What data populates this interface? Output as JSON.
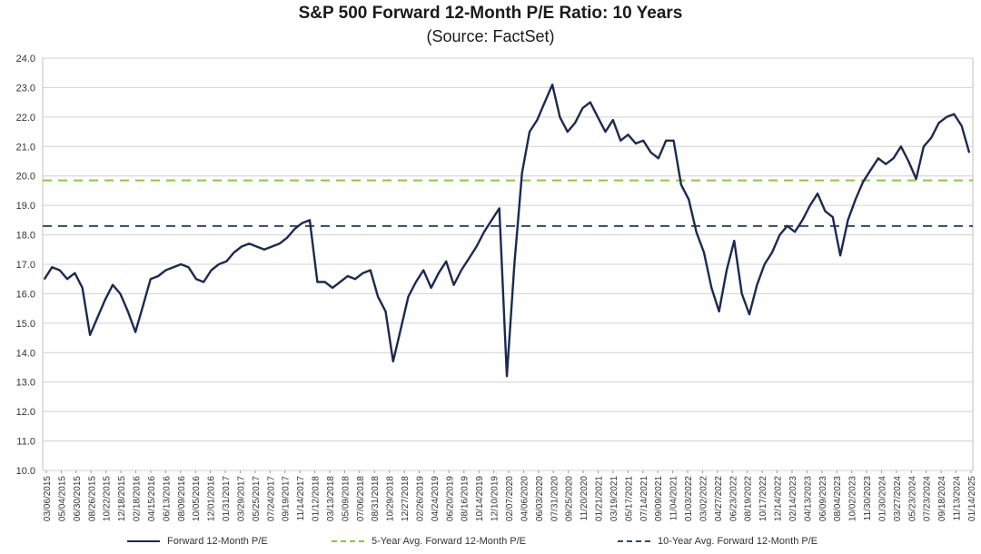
{
  "chart_data": {
    "type": "line",
    "title": "S&P 500 Forward 12-Month P/E Ratio: 10 Years",
    "subtitle": "(Source: FactSet)",
    "ylim": [
      10.0,
      24.0
    ],
    "y_ticks": [
      "10.0",
      "11.0",
      "12.0",
      "13.0",
      "14.0",
      "15.0",
      "16.0",
      "17.0",
      "18.0",
      "19.0",
      "20.0",
      "21.0",
      "22.0",
      "23.0",
      "24.0"
    ],
    "x_ticks": [
      "03/06/2015",
      "05/04/2015",
      "06/30/2015",
      "08/26/2015",
      "10/22/2015",
      "12/18/2015",
      "02/18/2016",
      "04/15/2016",
      "06/13/2016",
      "08/09/2016",
      "10/05/2016",
      "12/01/2016",
      "01/31/2017",
      "03/29/2017",
      "05/25/2017",
      "07/24/2017",
      "09/19/2017",
      "11/14/2017",
      "01/12/2018",
      "03/13/2018",
      "05/09/2018",
      "07/06/2018",
      "08/31/2018",
      "10/29/2018",
      "12/27/2018",
      "02/26/2019",
      "04/24/2019",
      "06/20/2019",
      "08/16/2019",
      "10/14/2019",
      "12/10/2019",
      "02/07/2020",
      "04/06/2020",
      "06/03/2020",
      "07/31/2020",
      "09/25/2020",
      "11/20/2020",
      "01/21/2021",
      "03/19/2021",
      "05/17/2021",
      "07/14/2021",
      "09/09/2021",
      "11/04/2021",
      "01/03/2022",
      "03/02/2022",
      "04/27/2022",
      "06/23/2022",
      "08/19/2022",
      "10/17/2022",
      "12/14/2022",
      "02/14/2023",
      "04/13/2023",
      "06/09/2023",
      "08/04/2023",
      "10/02/2023",
      "11/30/2023",
      "01/30/2024",
      "03/27/2024",
      "05/23/2024",
      "07/23/2024",
      "09/18/2024",
      "11/13/2024",
      "01/14/2025"
    ],
    "grid": true,
    "legend_position": "bottom",
    "series": [
      {
        "name": "Forward 12-Month P/E",
        "color": "#1b2a52",
        "x": [
          "03/06/2015",
          "04/2015",
          "05/2015",
          "06/2015",
          "07/2015",
          "08/2015",
          "08/26/2015",
          "09/2015",
          "10/2015",
          "11/2015",
          "12/2015",
          "01/2016",
          "02/11/2016",
          "03/2016",
          "04/2016",
          "05/2016",
          "06/2016",
          "07/2016",
          "08/2016",
          "09/2016",
          "10/2016",
          "11/2016",
          "12/2016",
          "01/2017",
          "02/2017",
          "03/2017",
          "04/2017",
          "05/2017",
          "06/2017",
          "07/2017",
          "08/2017",
          "09/2017",
          "10/2017",
          "11/2017",
          "12/2017",
          "01/26/2018",
          "02/09/2018",
          "03/2018",
          "04/2018",
          "05/2018",
          "06/2018",
          "07/2018",
          "08/2018",
          "09/2018",
          "10/2018",
          "11/2018",
          "12/24/2018",
          "01/2019",
          "02/2019",
          "03/2019",
          "04/2019",
          "05/2019",
          "06/2019",
          "07/2019",
          "08/2019",
          "09/2019",
          "10/2019",
          "11/2019",
          "12/2019",
          "01/2020",
          "02/19/2020",
          "03/23/2020",
          "04/2020",
          "05/2020",
          "06/2020",
          "07/2020",
          "08/2020",
          "09/02/2020",
          "09/2020",
          "10/2020",
          "11/2020",
          "12/2020",
          "01/2021",
          "02/2021",
          "03/2021",
          "04/2021",
          "05/2021",
          "06/2021",
          "07/2021",
          "08/2021",
          "09/2021",
          "10/2021",
          "11/2021",
          "12/2021",
          "01/2022",
          "02/2022",
          "03/2022",
          "04/2022",
          "05/2022",
          "06/16/2022",
          "07/2022",
          "08/2022",
          "09/2022",
          "10/12/2022",
          "11/2022",
          "12/2022",
          "01/2023",
          "02/2023",
          "03/2023",
          "04/2023",
          "05/2023",
          "06/2023",
          "07/2023",
          "08/2023",
          "09/2023",
          "10/27/2023",
          "11/2023",
          "12/2023",
          "01/2024",
          "02/2024",
          "03/2024",
          "04/2024",
          "05/2024",
          "06/2024",
          "07/2024",
          "08/05/2024",
          "09/2024",
          "10/2024",
          "11/2024",
          "12/2024",
          "01/2025",
          "02/2025",
          "03/2025"
        ],
        "values": [
          16.5,
          16.9,
          16.8,
          16.5,
          16.7,
          16.2,
          14.6,
          15.2,
          15.8,
          16.3,
          16.0,
          15.4,
          14.7,
          15.6,
          16.5,
          16.6,
          16.8,
          16.9,
          17.0,
          16.9,
          16.5,
          16.4,
          16.8,
          17.0,
          17.1,
          17.4,
          17.6,
          17.7,
          17.6,
          17.5,
          17.6,
          17.7,
          17.9,
          18.2,
          18.4,
          18.5,
          16.4,
          16.4,
          16.2,
          16.4,
          16.6,
          16.5,
          16.7,
          16.8,
          15.9,
          15.4,
          13.7,
          14.8,
          15.9,
          16.4,
          16.8,
          16.2,
          16.7,
          17.1,
          16.3,
          16.8,
          17.2,
          17.6,
          18.1,
          18.5,
          18.9,
          13.2,
          17.0,
          20.1,
          21.5,
          21.9,
          22.5,
          23.1,
          22.0,
          21.5,
          21.8,
          22.3,
          22.5,
          22.0,
          21.5,
          21.9,
          21.2,
          21.4,
          21.1,
          21.2,
          20.8,
          20.6,
          21.2,
          21.2,
          19.7,
          19.2,
          18.1,
          17.4,
          16.2,
          15.4,
          16.8,
          17.8,
          16.0,
          15.3,
          16.3,
          17.0,
          17.4,
          18.0,
          18.3,
          18.1,
          18.5,
          19.0,
          19.4,
          18.8,
          18.6,
          17.3,
          18.5,
          19.2,
          19.8,
          20.2,
          20.6,
          20.4,
          20.6,
          21.0,
          20.5,
          19.9,
          21.0,
          21.3,
          21.8,
          22.0,
          22.1,
          21.7,
          20.8
        ]
      },
      {
        "name": "5-Year Avg. Forward 12-Month P/E",
        "color": "#8cc63f",
        "value": 19.85
      },
      {
        "name": "10-Year Avg. Forward 12-Month P/E",
        "color": "#2c4a6b",
        "value": 18.3
      }
    ]
  }
}
